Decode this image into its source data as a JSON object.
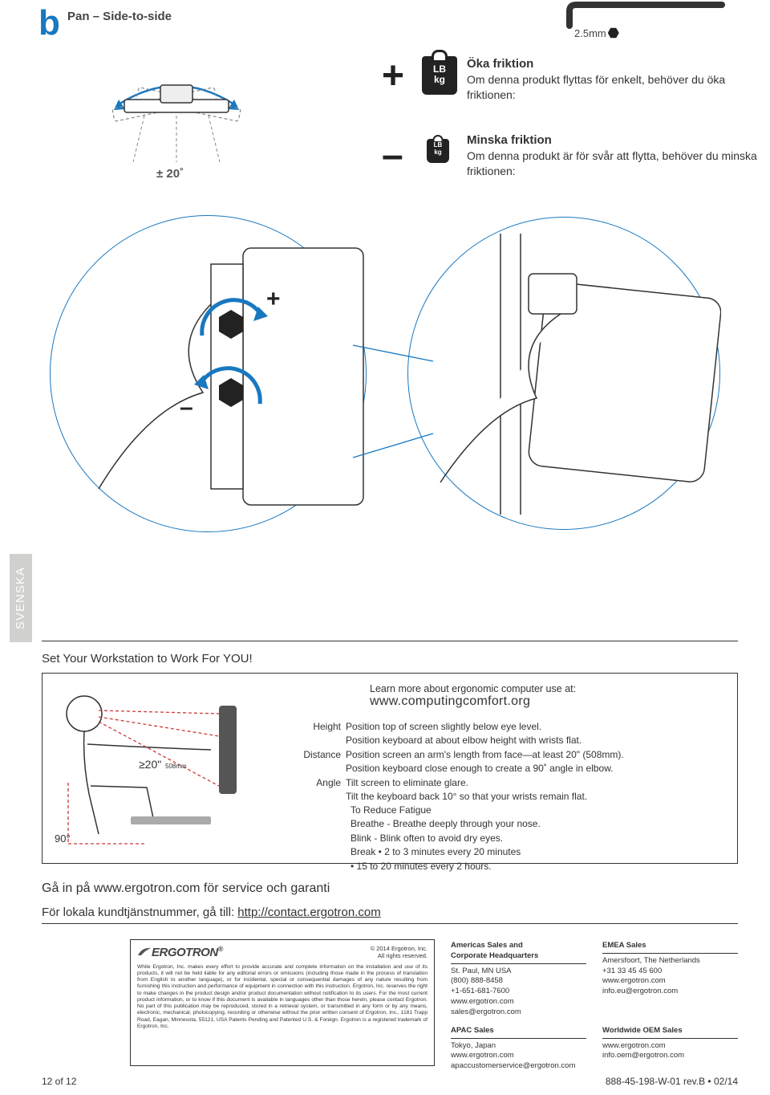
{
  "step": {
    "letter": "b",
    "title": "Pan – Side-to-side"
  },
  "wrench_size": "2.5mm",
  "friction": {
    "increase": {
      "title": "Öka friktion",
      "desc": "Om denna produkt flyttas för enkelt, behöver du öka friktionen:"
    },
    "decrease": {
      "title": "Minska friktion",
      "desc": "Om denna produkt är för svår att flytta, behöver du minska friktionen:"
    }
  },
  "weight_labels": {
    "lb": "LB",
    "kg": "kg"
  },
  "pan_angle": "± 20˚",
  "language_tab": "SVENSKA",
  "workstation_title": "Set Your Workstation to Work For YOU!",
  "learn_more": {
    "text": "Learn more about ergonomic computer use at:",
    "url": "www.computingcomfort.org"
  },
  "ergo_figure": {
    "distance_label": "≥20\"",
    "distance_mm": "508mm",
    "angle_label": "90°"
  },
  "ergo_rows": [
    {
      "label": "Height",
      "text": "Position top of screen slightly below eye level."
    },
    {
      "label": "",
      "text": "Position keyboard at about elbow height with wrists flat."
    },
    {
      "label": "Distance",
      "text": "Position screen an arm's length from face—at least 20\" (508mm)."
    },
    {
      "label": "",
      "text": "Position keyboard close enough to create a 90˚ angle in elbow."
    },
    {
      "label": "Angle",
      "text": "Tilt screen to eliminate glare."
    },
    {
      "label": "",
      "text": "Tilt the keyboard back 10° so that your wrists remain flat."
    }
  ],
  "reduce": {
    "title": "To Reduce Fatigue",
    "lines": [
      "Breathe - Breathe deeply through your nose.",
      "Blink - Blink often to avoid dry eyes.",
      "Break • 2 to 3 minutes every 20 minutes",
      "• 15 to 20 minutes every 2 hours."
    ]
  },
  "service_line": "Gå in på www.ergotron.com för service och garanti",
  "contact_prefix": "För lokala kundtjänstnummer, gå till: ",
  "contact_url": "http://contact.ergotron.com",
  "legal": {
    "brand": "ERGOTRON",
    "copyright": "© 2014 Ergotron, Inc.\nAll rights reserved.",
    "text": "While Ergotron, Inc. makes every effort to provide accurate and complete information on the installation and use of its products, it will not be held liable for any editorial errors or omissions (including those made in the process of translation from English to another language), or for incidental, special or consequential damages of any nature resulting from furnishing this instruction and performance of equipment in connection with this instruction. Ergotron, Inc. reserves the right to make changes in the product design and/or product documentation without notification to its users. For the most current product information, or to know if this document is available in languages other than those herein, please contact Ergotron. No part of this publication may be reproduced, stored in a retrieval system, or transmitted in any form or by any means, electronic, mechanical, photocopying, recording or otherwise without the prior written consent of Ergotron, Inc., 1181 Trapp Road, Eagan, Minnesota, 55121, USA Patents Pending and Patented U.S. & Foreign. Ergotron is a registered trademark of Ergotron, Inc."
  },
  "sales": {
    "americas": {
      "title": "Americas Sales and\nCorporate Headquarters",
      "body": "St. Paul, MN USA\n(800) 888-8458\n+1-651-681-7600\nwww.ergotron.com\nsales@ergotron.com"
    },
    "emea": {
      "title": "EMEA Sales",
      "body": "Amersfoort, The Netherlands\n+31 33 45 45 600\nwww.ergotron.com\ninfo.eu@ergotron.com"
    },
    "apac": {
      "title": "APAC Sales",
      "body": "Tokyo, Japan\nwww.ergotron.com\napaccustomerservice@ergotron.com"
    },
    "oem": {
      "title": "Worldwide OEM Sales",
      "body": "www.ergotron.com\ninfo.oem@ergotron.com"
    }
  },
  "footer": {
    "left": "12 of 12",
    "right": "888-45-198-W-01 rev.B • 02/14"
  },
  "colors": {
    "accent": "#1878c0",
    "text": "#333333",
    "tab": "#d0d0cf",
    "red": "#cc3a3a"
  }
}
